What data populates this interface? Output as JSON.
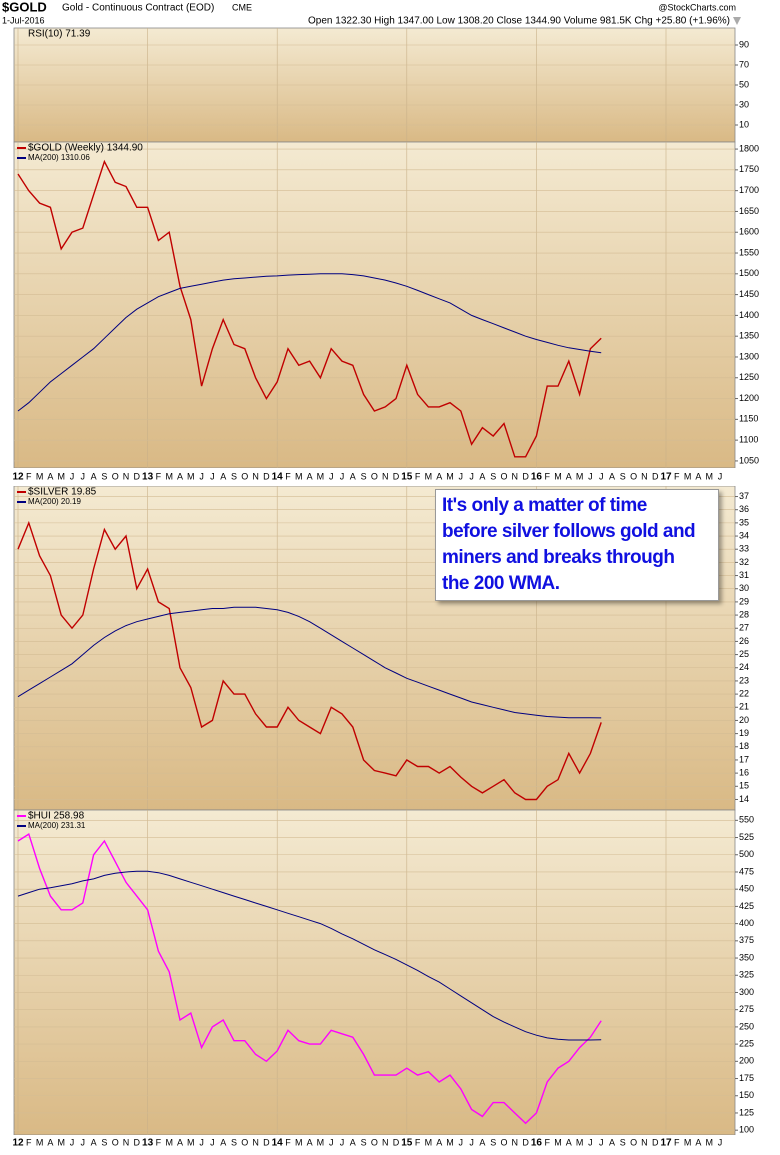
{
  "header": {
    "symbol": "$GOLD",
    "description": "Gold - Continuous Contract (EOD)",
    "exchange": "CME",
    "source": "@StockCharts.com",
    "date": "1-Jul-2016",
    "quote": "Open 1322.30 High 1347.00 Low 1308.20 Close 1344.90 Volume 981.5K Chg +25.80 (+1.96%)"
  },
  "annotation": {
    "lines": [
      "It's only a matter of time",
      "before silver follows gold and",
      "miners and breaks through",
      "the 200 WMA."
    ]
  },
  "time_axis": {
    "labels": [
      "12",
      "F",
      "M",
      "A",
      "M",
      "J",
      "J",
      "A",
      "S",
      "O",
      "N",
      "D",
      "13",
      "F",
      "M",
      "A",
      "M",
      "J",
      "J",
      "A",
      "S",
      "O",
      "N",
      "D",
      "14",
      "F",
      "M",
      "A",
      "M",
      "J",
      "J",
      "A",
      "S",
      "O",
      "N",
      "D",
      "15",
      "F",
      "M",
      "A",
      "M",
      "J",
      "J",
      "A",
      "S",
      "O",
      "N",
      "D",
      "16",
      "F",
      "M",
      "A",
      "M",
      "J",
      "J",
      "A",
      "S",
      "O",
      "N",
      "D",
      "17",
      "F",
      "M",
      "A",
      "M",
      "J"
    ]
  },
  "chart_data": [
    {
      "type": "line",
      "legend": "RSI(10) 71.39",
      "ylim": [
        -7,
        107
      ],
      "yticks": [
        10,
        30,
        50,
        70,
        90
      ],
      "grid": true,
      "series": []
    },
    {
      "type": "line",
      "ylim": [
        1033,
        1817
      ],
      "yticks": [
        1050,
        1100,
        1150,
        1200,
        1250,
        1300,
        1350,
        1400,
        1450,
        1500,
        1550,
        1600,
        1650,
        1700,
        1750,
        1800
      ],
      "grid": true,
      "x": [
        "2012-01",
        "2012-02",
        "2012-03",
        "2012-04",
        "2012-05",
        "2012-06",
        "2012-07",
        "2012-08",
        "2012-09",
        "2012-10",
        "2012-11",
        "2012-12",
        "2013-01",
        "2013-02",
        "2013-03",
        "2013-04",
        "2013-05",
        "2013-06",
        "2013-07",
        "2013-08",
        "2013-09",
        "2013-10",
        "2013-11",
        "2013-12",
        "2014-01",
        "2014-02",
        "2014-03",
        "2014-04",
        "2014-05",
        "2014-06",
        "2014-07",
        "2014-08",
        "2014-09",
        "2014-10",
        "2014-11",
        "2014-12",
        "2015-01",
        "2015-02",
        "2015-03",
        "2015-04",
        "2015-05",
        "2015-06",
        "2015-07",
        "2015-08",
        "2015-09",
        "2015-10",
        "2015-11",
        "2015-12",
        "2016-01",
        "2016-02",
        "2016-03",
        "2016-04",
        "2016-05",
        "2016-06",
        "2016-07"
      ],
      "series": [
        {
          "name": "$GOLD (Weekly) 1344.90",
          "color": "#c00000",
          "values": [
            1740,
            1700,
            1670,
            1660,
            1560,
            1600,
            1610,
            1690,
            1770,
            1720,
            1710,
            1660,
            1660,
            1580,
            1600,
            1470,
            1390,
            1230,
            1320,
            1390,
            1330,
            1320,
            1250,
            1200,
            1240,
            1320,
            1280,
            1290,
            1250,
            1320,
            1290,
            1280,
            1210,
            1170,
            1180,
            1200,
            1280,
            1210,
            1180,
            1180,
            1190,
            1170,
            1090,
            1130,
            1110,
            1140,
            1060,
            1060,
            1110,
            1230,
            1230,
            1290,
            1210,
            1320,
            1345
          ]
        },
        {
          "name": "MA(200) 1310.06",
          "color": "#000080",
          "values": [
            1170,
            1190,
            1215,
            1240,
            1260,
            1280,
            1300,
            1320,
            1345,
            1370,
            1395,
            1415,
            1430,
            1445,
            1455,
            1465,
            1470,
            1475,
            1480,
            1485,
            1488,
            1490,
            1492,
            1494,
            1495,
            1497,
            1498,
            1499,
            1500,
            1500,
            1500,
            1498,
            1495,
            1490,
            1485,
            1478,
            1470,
            1460,
            1450,
            1440,
            1430,
            1415,
            1400,
            1390,
            1380,
            1370,
            1360,
            1350,
            1342,
            1335,
            1328,
            1322,
            1318,
            1314,
            1310
          ]
        }
      ]
    },
    {
      "type": "line",
      "ylim": [
        13.2,
        37.8
      ],
      "yticks": [
        14,
        15,
        16,
        17,
        18,
        19,
        20,
        21,
        22,
        23,
        24,
        25,
        26,
        27,
        28,
        29,
        30,
        31,
        32,
        33,
        34,
        35,
        36,
        37
      ],
      "grid": true,
      "x": [
        "2012-01",
        "2012-02",
        "2012-03",
        "2012-04",
        "2012-05",
        "2012-06",
        "2012-07",
        "2012-08",
        "2012-09",
        "2012-10",
        "2012-11",
        "2012-12",
        "2013-01",
        "2013-02",
        "2013-03",
        "2013-04",
        "2013-05",
        "2013-06",
        "2013-07",
        "2013-08",
        "2013-09",
        "2013-10",
        "2013-11",
        "2013-12",
        "2014-01",
        "2014-02",
        "2014-03",
        "2014-04",
        "2014-05",
        "2014-06",
        "2014-07",
        "2014-08",
        "2014-09",
        "2014-10",
        "2014-11",
        "2014-12",
        "2015-01",
        "2015-02",
        "2015-03",
        "2015-04",
        "2015-05",
        "2015-06",
        "2015-07",
        "2015-08",
        "2015-09",
        "2015-10",
        "2015-11",
        "2015-12",
        "2016-01",
        "2016-02",
        "2016-03",
        "2016-04",
        "2016-05",
        "2016-06",
        "2016-07"
      ],
      "series": [
        {
          "name": "$SILVER 19.85",
          "color": "#c00000",
          "values": [
            33,
            35,
            32.5,
            31,
            28,
            27,
            28,
            31.5,
            34.5,
            33,
            34,
            30,
            31.5,
            29,
            28.5,
            24,
            22.5,
            19.5,
            20,
            23,
            22,
            22,
            20.5,
            19.5,
            19.5,
            21,
            20,
            19.5,
            19,
            21,
            20.5,
            19.5,
            17,
            16.2,
            16,
            15.8,
            17,
            16.5,
            16.5,
            16,
            16.5,
            15.7,
            15,
            14.5,
            15,
            15.5,
            14.5,
            14,
            14,
            15,
            15.5,
            17.5,
            16,
            17.5,
            19.85
          ]
        },
        {
          "name": "MA(200) 20.19",
          "color": "#000080",
          "values": [
            21.8,
            22.3,
            22.8,
            23.3,
            23.8,
            24.3,
            25,
            25.7,
            26.3,
            26.8,
            27.2,
            27.5,
            27.7,
            27.9,
            28.1,
            28.2,
            28.3,
            28.4,
            28.5,
            28.5,
            28.6,
            28.6,
            28.6,
            28.5,
            28.4,
            28.2,
            27.9,
            27.5,
            27,
            26.5,
            26,
            25.5,
            25,
            24.5,
            24,
            23.6,
            23.2,
            22.9,
            22.6,
            22.3,
            22,
            21.7,
            21.4,
            21.2,
            21,
            20.8,
            20.6,
            20.5,
            20.4,
            20.3,
            20.25,
            20.2,
            20.2,
            20.2,
            20.19
          ]
        }
      ]
    },
    {
      "type": "line",
      "ylim": [
        93,
        565
      ],
      "yticks": [
        100,
        125,
        150,
        175,
        200,
        225,
        250,
        275,
        300,
        325,
        350,
        375,
        400,
        425,
        450,
        475,
        500,
        525,
        550
      ],
      "grid": true,
      "x": [
        "2012-01",
        "2012-02",
        "2012-03",
        "2012-04",
        "2012-05",
        "2012-06",
        "2012-07",
        "2012-08",
        "2012-09",
        "2012-10",
        "2012-11",
        "2012-12",
        "2013-01",
        "2013-02",
        "2013-03",
        "2013-04",
        "2013-05",
        "2013-06",
        "2013-07",
        "2013-08",
        "2013-09",
        "2013-10",
        "2013-11",
        "2013-12",
        "2014-01",
        "2014-02",
        "2014-03",
        "2014-04",
        "2014-05",
        "2014-06",
        "2014-07",
        "2014-08",
        "2014-09",
        "2014-10",
        "2014-11",
        "2014-12",
        "2015-01",
        "2015-02",
        "2015-03",
        "2015-04",
        "2015-05",
        "2015-06",
        "2015-07",
        "2015-08",
        "2015-09",
        "2015-10",
        "2015-11",
        "2015-12",
        "2016-01",
        "2016-02",
        "2016-03",
        "2016-04",
        "2016-05",
        "2016-06",
        "2016-07"
      ],
      "series": [
        {
          "name": "$HUI 258.98",
          "color": "#ff00ff",
          "values": [
            520,
            530,
            480,
            440,
            420,
            420,
            430,
            500,
            520,
            490,
            460,
            440,
            420,
            360,
            330,
            260,
            270,
            220,
            250,
            260,
            230,
            230,
            210,
            200,
            215,
            245,
            230,
            225,
            225,
            245,
            240,
            235,
            210,
            180,
            180,
            180,
            190,
            180,
            185,
            170,
            180,
            160,
            130,
            120,
            140,
            140,
            125,
            110,
            125,
            170,
            190,
            200,
            220,
            235,
            259
          ]
        },
        {
          "name": "MA(200) 231.31",
          "color": "#000080",
          "values": [
            440,
            445,
            450,
            452,
            455,
            458,
            462,
            465,
            470,
            473,
            475,
            476,
            476,
            474,
            470,
            465,
            460,
            455,
            450,
            445,
            440,
            435,
            430,
            425,
            420,
            415,
            410,
            405,
            400,
            393,
            385,
            378,
            370,
            362,
            355,
            348,
            340,
            332,
            323,
            315,
            305,
            295,
            285,
            275,
            265,
            257,
            250,
            243,
            238,
            234,
            232,
            231,
            231,
            231,
            231.31
          ]
        }
      ]
    }
  ]
}
